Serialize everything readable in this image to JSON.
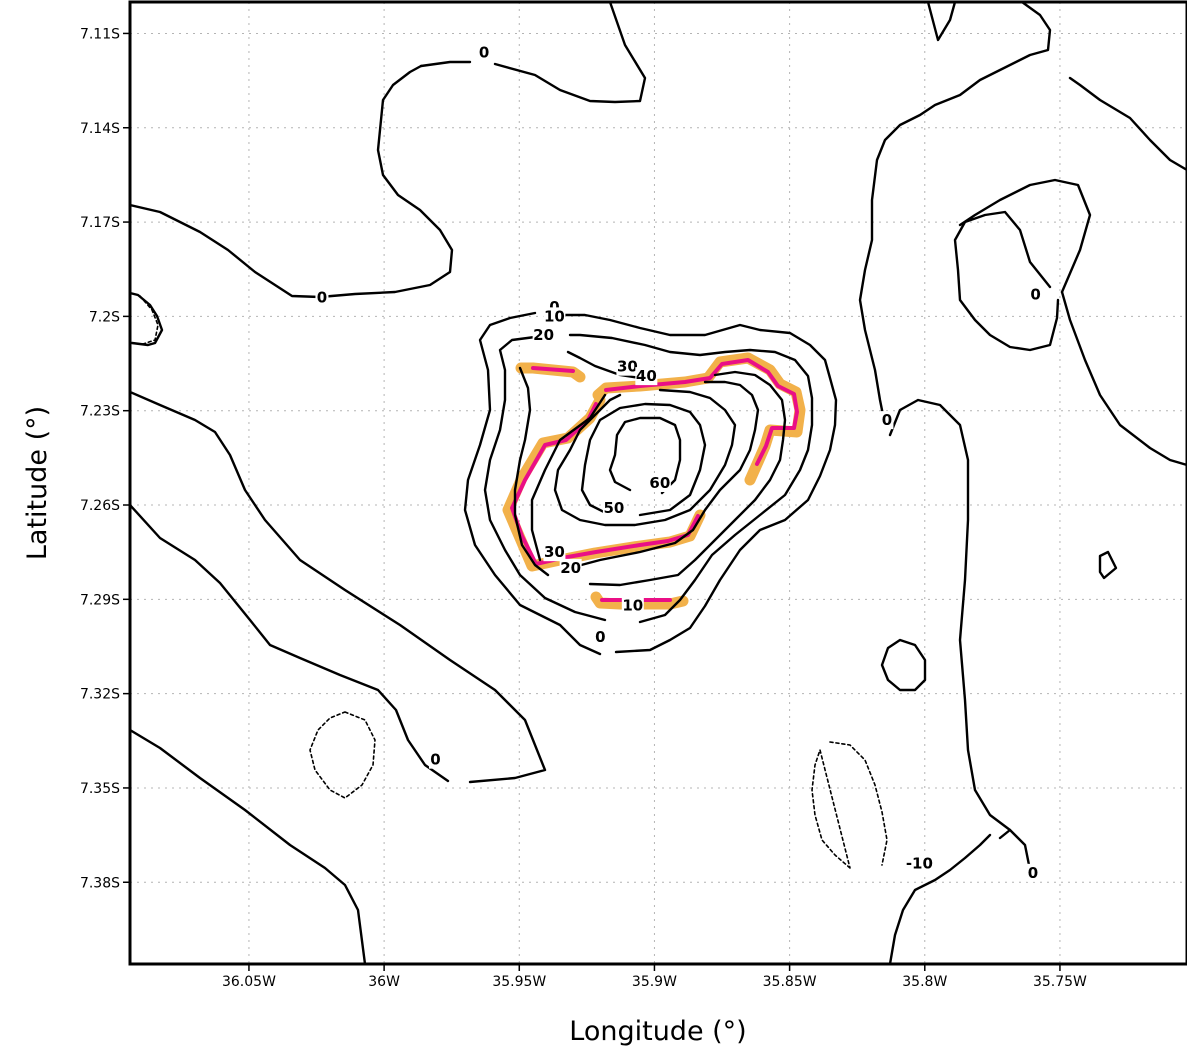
{
  "chart_data": {
    "type": "contour",
    "title": "",
    "xlabel": "Longitude (°)",
    "ylabel": "Latitude (°)",
    "xlim": [
      -36.094,
      -35.703
    ],
    "ylim": [
      -7.406,
      -7.1
    ],
    "grid": true,
    "x_ticks": [
      {
        "value": -36.05,
        "label": "36.05W"
      },
      {
        "value": -36.0,
        "label": "36W"
      },
      {
        "value": -35.95,
        "label": "35.95W"
      },
      {
        "value": -35.9,
        "label": "35.9W"
      },
      {
        "value": -35.85,
        "label": "35.85W"
      },
      {
        "value": -35.8,
        "label": "35.8W"
      },
      {
        "value": -35.75,
        "label": "35.75W"
      }
    ],
    "y_ticks": [
      {
        "value": -7.11,
        "label": "7.11S"
      },
      {
        "value": -7.14,
        "label": "7.14S"
      },
      {
        "value": -7.17,
        "label": "7.17S"
      },
      {
        "value": -7.2,
        "label": "7.2S"
      },
      {
        "value": -7.23,
        "label": "7.23S"
      },
      {
        "value": -7.26,
        "label": "7.26S"
      },
      {
        "value": -7.29,
        "label": "7.29S"
      },
      {
        "value": -7.32,
        "label": "7.32S"
      },
      {
        "value": -7.35,
        "label": "7.35S"
      },
      {
        "value": -7.38,
        "label": "7.38S"
      }
    ],
    "contour_levels": [
      -10,
      0,
      10,
      20,
      30,
      40,
      50,
      60
    ],
    "contour_labels": [
      {
        "text": "0",
        "lon": -35.963,
        "lat": -7.116
      },
      {
        "text": "0",
        "lon": -36.023,
        "lat": -7.194
      },
      {
        "text": "0",
        "lon": -35.759,
        "lat": -7.193
      },
      {
        "text": "0",
        "lon": -35.814,
        "lat": -7.233
      },
      {
        "text": "0",
        "lon": -35.937,
        "lat": -7.197
      },
      {
        "text": "10",
        "lon": -35.937,
        "lat": -7.2
      },
      {
        "text": "20",
        "lon": -35.941,
        "lat": -7.206
      },
      {
        "text": "30",
        "lon": -35.91,
        "lat": -7.216
      },
      {
        "text": "40",
        "lon": -35.903,
        "lat": -7.219
      },
      {
        "text": "60",
        "lon": -35.898,
        "lat": -7.253
      },
      {
        "text": "50",
        "lon": -35.915,
        "lat": -7.261
      },
      {
        "text": "30",
        "lon": -35.937,
        "lat": -7.275
      },
      {
        "text": "20",
        "lon": -35.931,
        "lat": -7.28
      },
      {
        "text": "10",
        "lon": -35.908,
        "lat": -7.292
      },
      {
        "text": "0",
        "lon": -35.92,
        "lat": -7.302
      },
      {
        "text": "0",
        "lon": -35.981,
        "lat": -7.341
      },
      {
        "text": "-10",
        "lon": -35.802,
        "lat": -7.374
      },
      {
        "text": "0",
        "lon": -35.76,
        "lat": -7.377
      }
    ],
    "colors": {
      "contour": "#000000",
      "grid": "#b4b4b4",
      "highlight_outer": "#f2b14a",
      "highlight_inner": "#ea0f86"
    }
  }
}
